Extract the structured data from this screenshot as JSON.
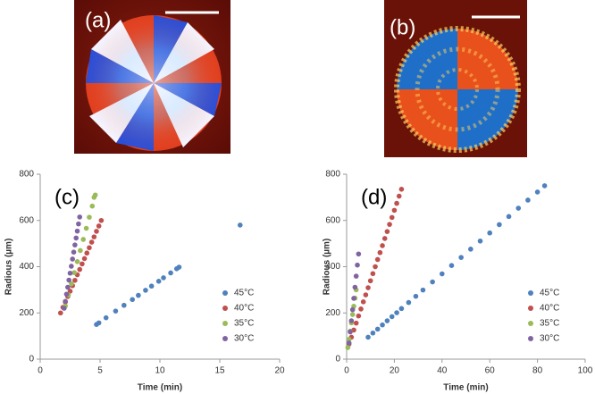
{
  "panels": {
    "a": "(a)",
    "b": "(b)"
  },
  "chart_data": [
    {
      "type": "scatter",
      "panel_label": "(c)",
      "x_label": "Time (min)",
      "y_label": "Radious (µm)",
      "xlim": [
        0,
        20
      ],
      "ylim": [
        0,
        800
      ],
      "xticks": [
        0,
        5,
        10,
        15,
        20
      ],
      "yticks": [
        0,
        200,
        400,
        600,
        800
      ],
      "series": [
        {
          "name": "45°C",
          "color": "#4f81bd",
          "x": [
            4.7,
            4.9,
            5.5,
            6.3,
            7.0,
            7.7,
            8.2,
            8.8,
            9.3,
            9.9,
            10.3,
            10.9,
            11.4,
            11.6,
            16.7
          ],
          "values": [
            150,
            157,
            179,
            208,
            233,
            258,
            276,
            298,
            316,
            337,
            352,
            373,
            391,
            398,
            580
          ]
        },
        {
          "name": "40°C",
          "color": "#c0504d",
          "x": [
            1.7,
            1.9,
            2.1,
            2.3,
            2.5,
            2.7,
            2.9,
            3.1,
            3.3,
            3.5,
            3.7,
            3.9,
            4.1,
            4.3,
            4.5,
            4.7,
            4.9,
            5.1
          ],
          "values": [
            200,
            224,
            247,
            271,
            294,
            318,
            341,
            365,
            388,
            412,
            435,
            459,
            482,
            506,
            529,
            553,
            576,
            600
          ]
        },
        {
          "name": "35°C",
          "color": "#9bbb59",
          "x": [
            2.1,
            2.35,
            2.6,
            2.85,
            3.1,
            3.35,
            3.6,
            3.85,
            4.1,
            4.35,
            4.5,
            4.6
          ],
          "values": [
            230,
            278,
            326,
            374,
            422,
            470,
            518,
            566,
            614,
            662,
            700,
            710
          ]
        },
        {
          "name": "30°C",
          "color": "#8064a2",
          "x": [
            2.0,
            2.1,
            2.2,
            2.3,
            2.4,
            2.5,
            2.6,
            2.7,
            2.8,
            2.9,
            3.0,
            3.1,
            3.2,
            3.3
          ],
          "values": [
            220,
            250,
            281,
            311,
            342,
            372,
            402,
            433,
            463,
            494,
            524,
            554,
            585,
            615
          ]
        }
      ]
    },
    {
      "type": "scatter",
      "panel_label": "(d)",
      "x_label": "Time (min)",
      "y_label": "Radious (µm)",
      "xlim": [
        0,
        100
      ],
      "ylim": [
        0,
        800
      ],
      "xticks": [
        0,
        20,
        40,
        60,
        80,
        100
      ],
      "yticks": [
        0,
        200,
        400,
        600,
        800
      ],
      "series": [
        {
          "name": "45°C",
          "color": "#4f81bd",
          "x": [
            9,
            11,
            13,
            15,
            17,
            19,
            21,
            23,
            26,
            29,
            32,
            36,
            40,
            44,
            48,
            52,
            56,
            60,
            64,
            68,
            72,
            76,
            80,
            83
          ],
          "values": [
            95,
            113,
            130,
            148,
            166,
            184,
            201,
            219,
            245,
            272,
            299,
            334,
            369,
            405,
            440,
            476,
            511,
            546,
            582,
            617,
            653,
            688,
            723,
            750
          ]
        },
        {
          "name": "40°C",
          "color": "#c0504d",
          "x": [
            1,
            2,
            3,
            4,
            5,
            6,
            7,
            8,
            9,
            10,
            11,
            12,
            13,
            14,
            15,
            16,
            17,
            18,
            19,
            20,
            21,
            22,
            23
          ],
          "values": [
            65,
            95,
            126,
            156,
            187,
            217,
            248,
            278,
            309,
            339,
            370,
            400,
            431,
            461,
            491,
            522,
            552,
            583,
            613,
            644,
            674,
            705,
            735
          ]
        },
        {
          "name": "35°C",
          "color": "#9bbb59",
          "x": [
            0.5,
            1,
            1.5,
            2,
            2.5,
            3,
            3.5,
            4
          ],
          "values": [
            50,
            86,
            121,
            157,
            193,
            229,
            264,
            300
          ]
        },
        {
          "name": "30°C",
          "color": "#8064a2",
          "x": [
            1,
            1.5,
            2,
            2.5,
            3,
            3.5,
            4,
            4.5,
            5
          ],
          "values": [
            70,
            118,
            166,
            214,
            263,
            311,
            359,
            407,
            455
          ]
        }
      ]
    }
  ]
}
